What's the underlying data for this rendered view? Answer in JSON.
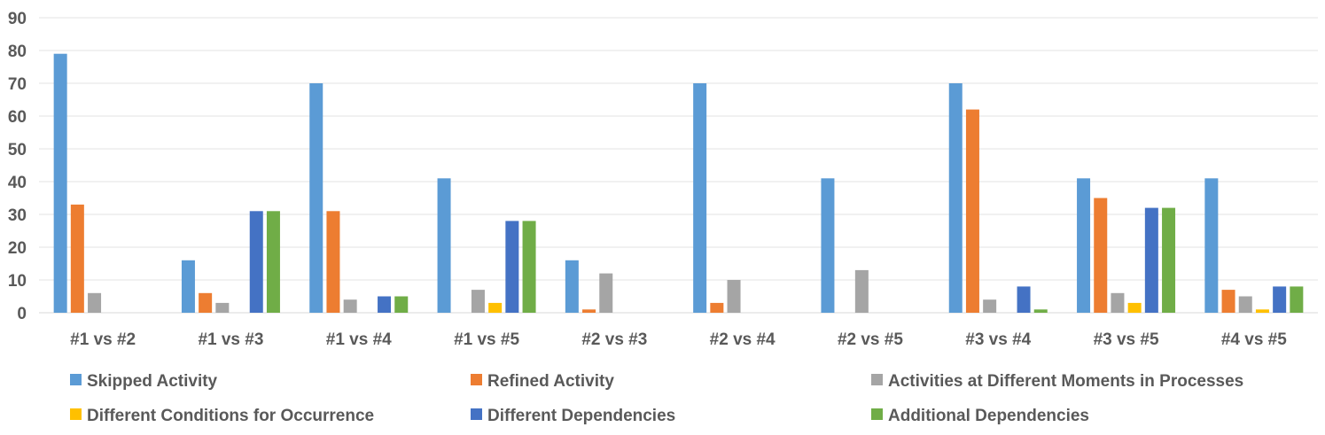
{
  "chart_data": {
    "type": "bar",
    "title": "",
    "xlabel": "",
    "ylabel": "",
    "ylim": [
      0,
      90
    ],
    "yticks": [
      0,
      10,
      20,
      30,
      40,
      50,
      60,
      70,
      80,
      90
    ],
    "grid": true,
    "legend_position": "bottom",
    "categories": [
      "#1 vs #2",
      "#1 vs #3",
      "#1 vs #4",
      "#1 vs #5",
      "#2 vs #3",
      "#2 vs #4",
      "#2 vs #5",
      "#3 vs #4",
      "#3 vs #5",
      "#4 vs #5"
    ],
    "series": [
      {
        "name": "Skipped Activity",
        "color": "#5B9BD5",
        "values": [
          79,
          16,
          70,
          41,
          16,
          70,
          41,
          70,
          41,
          41
        ]
      },
      {
        "name": "Refined Activity",
        "color": "#ED7D31",
        "values": [
          33,
          6,
          31,
          0,
          1,
          3,
          0,
          62,
          35,
          7
        ]
      },
      {
        "name": "Activities at Different Moments in Processes",
        "color": "#A5A5A5",
        "values": [
          6,
          3,
          4,
          7,
          12,
          10,
          13,
          4,
          6,
          5
        ]
      },
      {
        "name": "Different Conditions for Occurrence",
        "color": "#FFC000",
        "values": [
          0,
          0,
          0,
          3,
          0,
          0,
          0,
          0,
          3,
          1
        ]
      },
      {
        "name": "Different Dependencies",
        "color": "#4472C4",
        "values": [
          0,
          31,
          5,
          28,
          0,
          0,
          0,
          8,
          32,
          8
        ]
      },
      {
        "name": "Additional Dependencies",
        "color": "#70AD47",
        "values": [
          0,
          31,
          5,
          28,
          0,
          0,
          0,
          1,
          32,
          8
        ]
      }
    ]
  }
}
